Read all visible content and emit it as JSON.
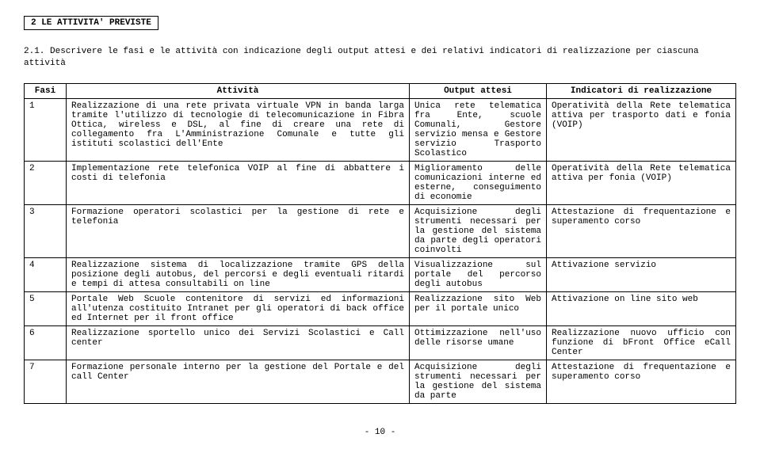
{
  "section_title": "2 LE ATTIVITA' PREVISTE",
  "subsection": "2.1. Descrivere le fasi e le attività con indicazione degli output attesi e dei relativi indicatori di realizzazione per ciascuna attività",
  "headers": {
    "fasi": "Fasi",
    "attivita": "Attività",
    "output": "Output attesi",
    "indicatori": "Indicatori di realizzazione"
  },
  "rows": [
    {
      "n": "1",
      "att": "Realizzazione di una rete privata virtuale VPN in banda larga tramite l'utilizzo di tecnologie di telecomunicazione in Fibra Ottica, wireless e DSL, al fine di creare una rete di collegamento fra L'Amministrazione Comunale e tutte gli istituti scolastici dell'Ente",
      "out": "Unica rete telematica fra Ente, scuole Comunali, Gestore servizio mensa e Gestore servizio Trasporto Scolastico",
      "ind": "Operatività della Rete telematica attiva per trasporto dati e fonia (VOIP)"
    },
    {
      "n": "2",
      "att": "Implementazione rete telefonica VOIP al fine di abbattere i costi di telefonia",
      "out": "Miglioramento delle comunicazioni interne ed esterne, conseguimento di economie",
      "ind": "Operatività della Rete telematica attiva per fonia (VOIP)"
    },
    {
      "n": "3",
      "att": "Formazione operatori scolastici per la gestione di rete e telefonia",
      "out": "Acquisizione degli strumenti necessari per la gestione del sistema da parte degli operatori coinvolti",
      "ind": "Attestazione di frequentazione e superamento corso"
    },
    {
      "n": "4",
      "att": "Realizzazione sistema di localizzazione tramite GPS della posizione degli autobus, del percorsi e degli eventuali ritardi e tempi di attesa consultabili on line",
      "out": "Visualizzazione sul portale del percorso degli autobus",
      "ind": "Attivazione servizio"
    },
    {
      "n": "5",
      "att": "Portale Web Scuole contenitore di servizi ed informazioni all'utenza costituito Intranet per gli operatori di back office ed Internet per il front office",
      "out": "Realizzazione sito Web per il portale unico",
      "ind": "Attivazione on line sito web"
    },
    {
      "n": "6",
      "att": "Realizzazione sportello unico dei Servizi Scolastici e Call center",
      "out": "Ottimizzazione nell'uso delle risorse umane",
      "ind": "Realizzazione nuovo ufficio con funzione di bFront Office eCall Center"
    },
    {
      "n": "7",
      "att": "Formazione personale interno per la gestione del Portale e del call Center",
      "out": "Acquisizione degli strumenti necessari per la gestione del sistema da parte",
      "ind": "Attestazione di frequentazione e superamento corso"
    }
  ],
  "page_footer": "- 10 -"
}
